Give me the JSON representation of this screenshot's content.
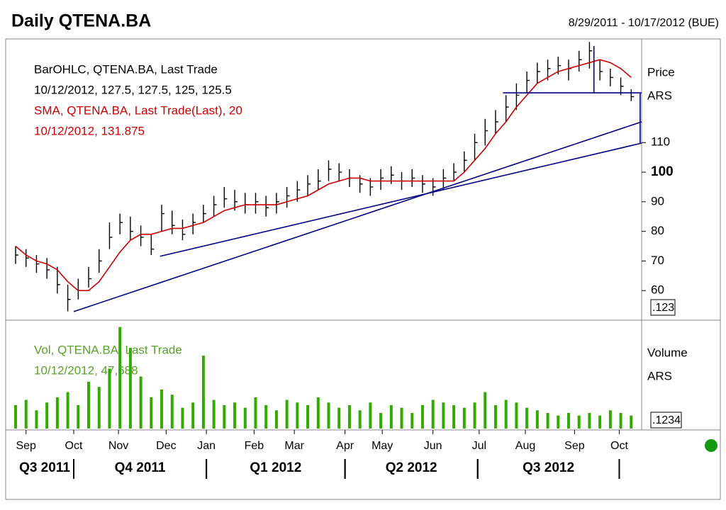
{
  "chart_data": {
    "type": "ohlc",
    "title": "Daily QTENA.BA",
    "date_range": "8/29/2011 - 10/17/2012 (BUE)",
    "legend_lines": [
      {
        "text": "BarOHLC, QTENA.BA, Last Trade",
        "color": "#000000"
      },
      {
        "text": "10/12/2012, 127.5, 127.5, 125, 125.5",
        "color": "#000000"
      },
      {
        "text": "SMA, QTENA.BA, Last Trade(Last),  20",
        "color": "#cc0000"
      },
      {
        "text": "10/12/2012, 131.875",
        "color": "#cc0000"
      }
    ],
    "price_axis_label": [
      "Price",
      "ARS"
    ],
    "price_box_label": ".123",
    "xlim": [
      0,
      420
    ],
    "x": [
      0,
      7,
      14,
      21,
      28,
      35,
      42,
      49,
      56,
      63,
      70,
      77,
      84,
      91,
      98,
      105,
      112,
      119,
      126,
      133,
      140,
      147,
      154,
      161,
      168,
      175,
      182,
      189,
      196,
      203,
      210,
      217,
      224,
      231,
      238,
      245,
      252,
      259,
      266,
      273,
      280,
      287,
      294,
      301,
      308,
      315,
      322,
      329,
      336,
      343,
      350,
      357,
      364,
      371,
      378,
      385,
      392,
      399,
      406,
      413
    ],
    "high": [
      75,
      74,
      72,
      71,
      68,
      62,
      64,
      68,
      74,
      83,
      86,
      85,
      82,
      79,
      89,
      87,
      84,
      86,
      89,
      92,
      95,
      94,
      93,
      93,
      92,
      93,
      95,
      97,
      99,
      101,
      104,
      103,
      101,
      99,
      98,
      101,
      102,
      100,
      101,
      99,
      98,
      101,
      103,
      107,
      113,
      118,
      121,
      126,
      130,
      134,
      137,
      138,
      139,
      138,
      141,
      144,
      138,
      135,
      132,
      128
    ],
    "low": [
      69,
      68,
      66,
      64,
      59,
      53,
      57,
      61,
      66,
      74,
      79,
      77,
      75,
      72,
      80,
      79,
      77,
      79,
      83,
      85,
      88,
      87,
      86,
      86,
      85,
      86,
      88,
      90,
      92,
      94,
      97,
      97,
      95,
      93,
      92,
      94,
      96,
      94,
      95,
      93,
      92,
      94,
      97,
      100,
      104,
      109,
      113,
      117,
      121,
      127,
      130,
      131,
      133,
      131,
      134,
      135,
      131,
      129,
      126,
      124
    ],
    "close": [
      72,
      71,
      69,
      67,
      62,
      57,
      60,
      64,
      70,
      78,
      83,
      80,
      78,
      74,
      86,
      82,
      79,
      83,
      86,
      89,
      91,
      90,
      89,
      90,
      88,
      90,
      92,
      94,
      96,
      97,
      101,
      100,
      98,
      96,
      95,
      98,
      99,
      97,
      98,
      96,
      95,
      98,
      100,
      104,
      110,
      114,
      117,
      122,
      126,
      131,
      134,
      135,
      136,
      135,
      138,
      141,
      134,
      132,
      129,
      125.5
    ],
    "bar_color": "#000000",
    "sma": {
      "color": "#cc0000",
      "values": [
        75,
        72,
        70,
        69,
        67,
        63,
        60,
        60,
        63,
        68,
        73,
        77,
        79,
        79,
        80,
        81,
        81,
        82,
        83,
        85,
        87,
        88,
        89,
        89,
        89,
        89,
        90,
        91,
        92,
        94,
        96,
        97,
        98,
        98,
        97,
        97,
        97,
        97,
        97,
        97,
        97,
        97,
        97,
        100,
        104,
        108,
        113,
        117,
        122,
        126,
        130,
        132,
        134,
        135,
        136,
        137,
        138,
        137,
        135,
        132
      ]
    },
    "ylim": [
      50,
      145
    ],
    "yticks": [
      60,
      70,
      80,
      90,
      100,
      110
    ],
    "bold_tick": 100,
    "trendline_color": "#000080",
    "trendlines": [
      {
        "x": [
          39,
          420
        ],
        "y": [
          52.9,
          117
        ]
      },
      {
        "x": [
          97,
          420
        ],
        "y": [
          71.6,
          109.8
        ]
      },
      {
        "x": [
          327,
          420
        ],
        "y": [
          126.8,
          126.8
        ]
      },
      {
        "x": [
          388,
          388
        ],
        "y": [
          142.6,
          126.8
        ]
      },
      {
        "x": [
          419,
          419
        ],
        "y": [
          126.8,
          109.8
        ]
      }
    ],
    "volume": {
      "legend_lines": [
        "Vol, QTENA.BA, Last Trade",
        "10/12/2012, 47,688"
      ],
      "axis_label": [
        "Volume",
        "ARS"
      ],
      "box_label": ".1234",
      "color": "#33aa00",
      "text_color": "#5aa02c",
      "ylim": [
        0,
        400000
      ],
      "values": [
        90000,
        110000,
        70000,
        100000,
        120000,
        140000,
        90000,
        180000,
        160000,
        230000,
        390000,
        310000,
        200000,
        120000,
        150000,
        130000,
        80000,
        100000,
        280000,
        110000,
        90000,
        100000,
        80000,
        120000,
        90000,
        70000,
        110000,
        100000,
        90000,
        120000,
        100000,
        80000,
        90000,
        70000,
        100000,
        60000,
        90000,
        80000,
        60000,
        90000,
        110000,
        100000,
        90000,
        80000,
        100000,
        140000,
        90000,
        110000,
        100000,
        80000,
        70000,
        60000,
        50000,
        60000,
        50000,
        60000,
        50000,
        70000,
        60000,
        50000
      ]
    },
    "xticks": [
      {
        "value": 7,
        "label": "Sep"
      },
      {
        "value": 39,
        "label": "Oct"
      },
      {
        "value": 69,
        "label": "Nov"
      },
      {
        "value": 101,
        "label": "Dec"
      },
      {
        "value": 128,
        "label": "Jan"
      },
      {
        "value": 160,
        "label": "Feb"
      },
      {
        "value": 187,
        "label": "Mar"
      },
      {
        "value": 221,
        "label": "Apr"
      },
      {
        "value": 246,
        "label": "May"
      },
      {
        "value": 280,
        "label": "Jun"
      },
      {
        "value": 311,
        "label": "Jul"
      },
      {
        "value": 342,
        "label": "Aug"
      },
      {
        "value": 375,
        "label": "Sep"
      },
      {
        "value": 405,
        "label": "Oct"
      }
    ],
    "quarters": [
      {
        "label": "Q3 2011",
        "start": 0,
        "end": 39
      },
      {
        "label": "Q4 2011",
        "start": 39,
        "end": 128
      },
      {
        "label": "Q1 2012",
        "start": 128,
        "end": 221
      },
      {
        "label": "Q2 2012",
        "start": 221,
        "end": 310
      },
      {
        "label": "Q3 2012",
        "start": 310,
        "end": 405
      }
    ]
  }
}
